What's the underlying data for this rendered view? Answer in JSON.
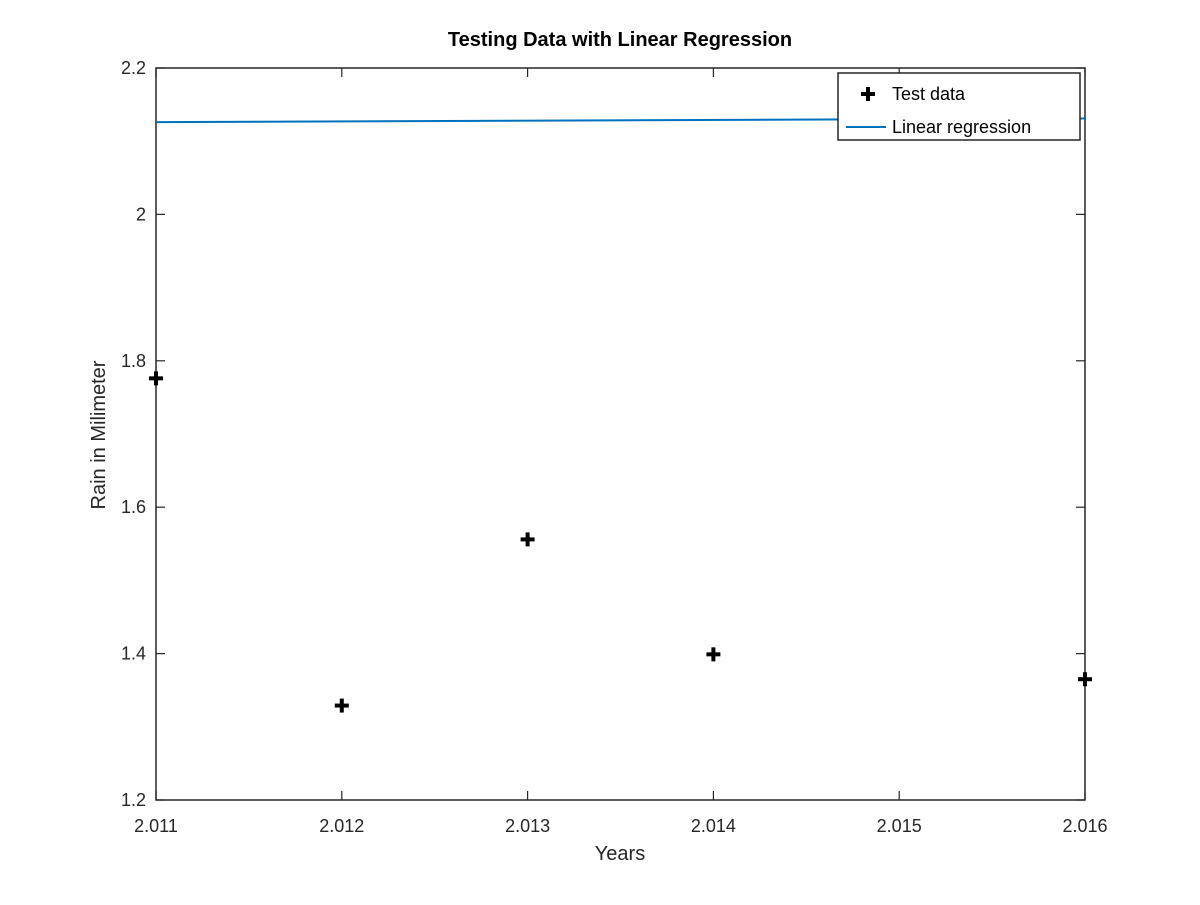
{
  "chart_data": {
    "type": "scatter",
    "title": "Testing Data with Linear Regression",
    "xlabel": "Years",
    "ylabel": "Rain in Milimeter",
    "xlim": [
      2.011,
      2.016
    ],
    "ylim": [
      1.2,
      2.2
    ],
    "x_ticks": [
      "2.011",
      "2.012",
      "2.013",
      "2.014",
      "2.015",
      "2.016"
    ],
    "y_ticks": [
      "1.2",
      "1.4",
      "1.6",
      "1.8",
      "2",
      "2.2"
    ],
    "grid": false,
    "legend_position": "top-right",
    "series": [
      {
        "name": "Test data",
        "type": "scatter",
        "marker": "plus",
        "color": "#000000",
        "x": [
          2.011,
          2.012,
          2.013,
          2.014,
          2.016
        ],
        "y": [
          1.776,
          1.329,
          1.556,
          1.399,
          1.365
        ]
      },
      {
        "name": "Linear regression",
        "type": "line",
        "color": "#0072bd",
        "x": [
          2.011,
          2.016
        ],
        "y": [
          2.126,
          2.131
        ]
      }
    ]
  }
}
